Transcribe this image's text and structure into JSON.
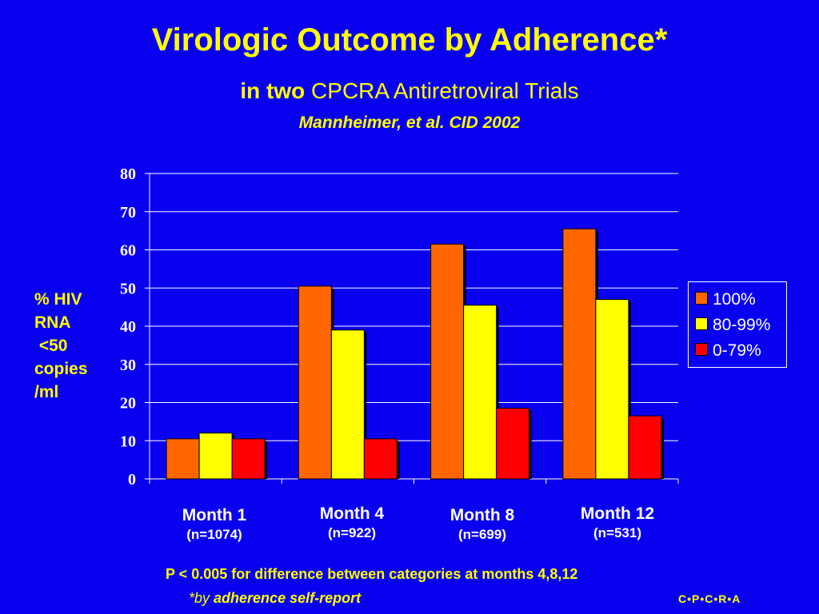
{
  "header": {
    "title": "Virologic Outcome by Adherence*",
    "subtitle_bold": "in two",
    "subtitle_rest": " CPCRA Antiretroviral Trials",
    "citation": "Mannheimer, et al. CID 2002"
  },
  "axis_label": "% HIV\nRNA\n <50\ncopies\n/ml",
  "chart_data": {
    "type": "bar",
    "categories": [
      "Month  1",
      "Month 4",
      "Month 8",
      "Month 12"
    ],
    "category_notes": [
      "(n=1074)",
      "(n=922)",
      "(n=699)",
      "(n=531)"
    ],
    "series": [
      {
        "name": "100%",
        "values": [
          10.5,
          50.5,
          61.5,
          65.5
        ]
      },
      {
        "name": "80-99%",
        "values": [
          12,
          39,
          45.5,
          47
        ]
      },
      {
        "name": "0-79%",
        "values": [
          10.5,
          10.5,
          18.5,
          16.5
        ]
      }
    ],
    "colors": [
      "#ff6600",
      "#ffff00",
      "#ff0000"
    ],
    "ylim": [
      0,
      80
    ],
    "yticks": [
      "0",
      "10",
      "20",
      "30",
      "40",
      "50",
      "60",
      "70",
      "80"
    ],
    "grid": true,
    "legend_position": "right"
  },
  "footer": {
    "pvalue": "P < 0.005 for difference between categories at  months 4,8,12",
    "note_prefix": "*by ",
    "note_rest": "adherence self-report",
    "logo": "C•P•C•R•A"
  }
}
